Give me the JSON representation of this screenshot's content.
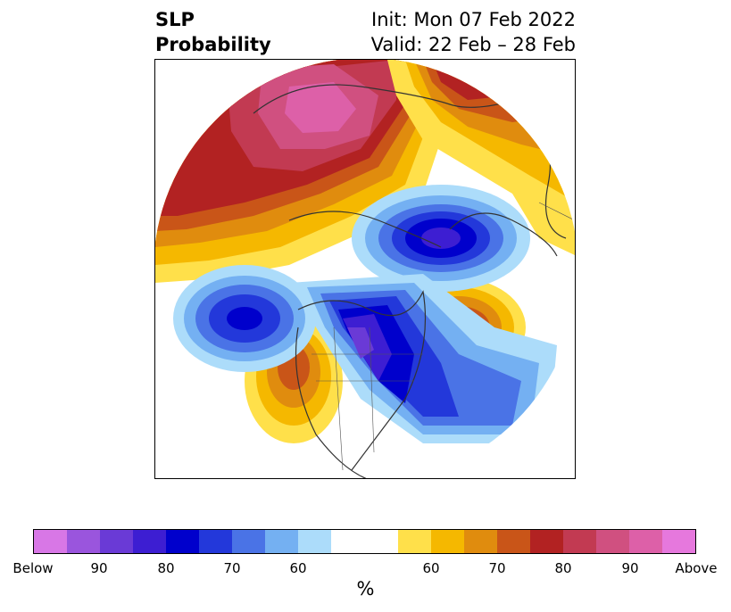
{
  "title": {
    "left_line1": "SLP",
    "left_line2": "Probability",
    "right_line1": "Init: Mon 07 Feb 2022",
    "right_line2": "Valid: 22 Feb – 28 Feb"
  },
  "colorbar": {
    "unit": "%",
    "labels": [
      "Below",
      "90",
      "80",
      "70",
      "60",
      "60",
      "70",
      "80",
      "90",
      "Above"
    ],
    "colors": [
      "#d877e6",
      "#9a55dd",
      "#6a3ad6",
      "#3d1ed2",
      "#0000cc",
      "#2338da",
      "#4a73e6",
      "#74b0f2",
      "#acdcfa",
      "#ffffff",
      "#ffe04a",
      "#f5b800",
      "#e08c0e",
      "#c95518",
      "#b22222",
      "#c23a52",
      "#d05080",
      "#dd60a8",
      "#e678dd"
    ]
  }
}
